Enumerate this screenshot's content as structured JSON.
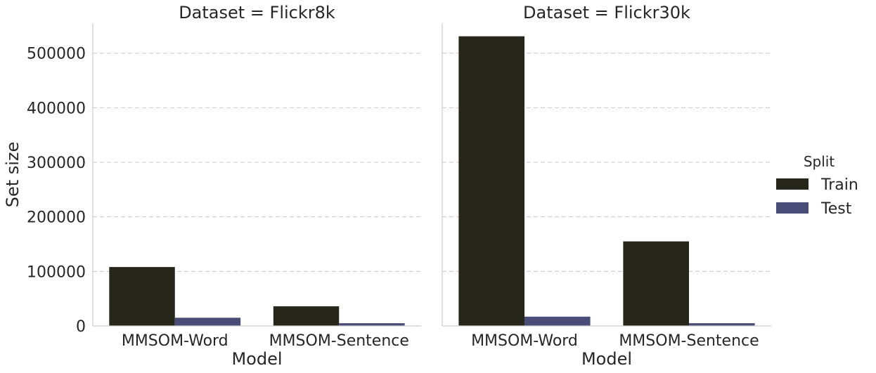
{
  "chart_data": [
    {
      "type": "bar",
      "title": "Dataset = Flickr8k",
      "xlabel": "Model",
      "ylabel": "Set size",
      "categories": [
        "MMSOM-Word",
        "MMSOM-Sentence"
      ],
      "series": [
        {
          "name": "Train",
          "values": [
            108000,
            36000
          ]
        },
        {
          "name": "Test",
          "values": [
            15000,
            5000
          ]
        }
      ],
      "ylim": [
        0,
        555000
      ],
      "yticks": [
        "0",
        "100000",
        "200000",
        "300000",
        "400000",
        "500000"
      ],
      "grid": "y-dashed"
    },
    {
      "type": "bar",
      "title": "Dataset = Flickr30k",
      "xlabel": "Model",
      "ylabel": "",
      "categories": [
        "MMSOM-Word",
        "MMSOM-Sentence"
      ],
      "series": [
        {
          "name": "Train",
          "values": [
            531000,
            155000
          ]
        },
        {
          "name": "Test",
          "values": [
            17000,
            5000
          ]
        }
      ],
      "ylim": [
        0,
        555000
      ],
      "grid": "y-dashed"
    }
  ],
  "legend": {
    "title": "Split",
    "placement": "right",
    "items": [
      {
        "label": "Train",
        "color": "#27261a"
      },
      {
        "label": "Test",
        "color": "#4a4c78"
      }
    ]
  },
  "colors": {
    "train": "#27261a",
    "test": "#4a4c78",
    "grid": "#c8c8c8",
    "axis": "#cccccc"
  }
}
